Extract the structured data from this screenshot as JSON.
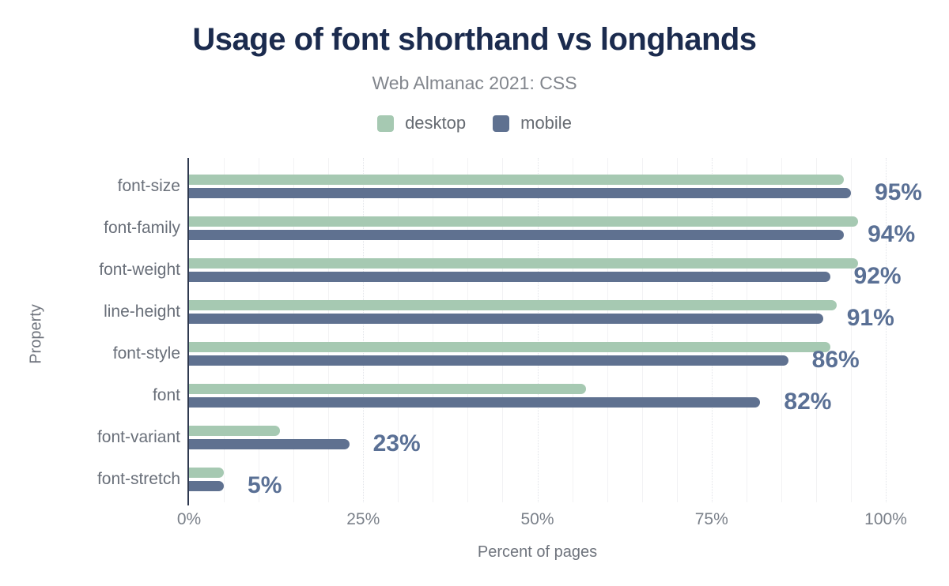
{
  "title": "Usage of font shorthand vs longhands",
  "subtitle": "Web Almanac 2021: CSS",
  "legend": {
    "items": [
      {
        "label": "desktop",
        "color": "#a6c9b2"
      },
      {
        "label": "mobile",
        "color": "#5f7190"
      }
    ]
  },
  "colors": {
    "title": "#1b2b4e",
    "subtitle": "#82868d",
    "legend_label": "#666b72",
    "category_label": "#696f79",
    "tick_label": "#7b818a",
    "axis_title": "#6f747d",
    "value_label": "#5a7095",
    "axis_line": "#2f3950",
    "grid_minor": "#f2f2f4",
    "grid_major": "#e2e4e9",
    "background": "#ffffff"
  },
  "chart_data": {
    "type": "bar",
    "orientation": "horizontal",
    "title": "Usage of font shorthand vs longhands",
    "subtitle": "Web Almanac 2021: CSS",
    "xlabel": "Percent of pages",
    "ylabel": "Property",
    "xlim": [
      0,
      100
    ],
    "grid": {
      "minor_step_pct": 5,
      "major_step_pct": 25,
      "minor_on": true,
      "major_on": true
    },
    "legend_position": "top",
    "x_ticks": [
      {
        "value": 0,
        "label": "0%"
      },
      {
        "value": 25,
        "label": "25%"
      },
      {
        "value": 50,
        "label": "50%"
      },
      {
        "value": 75,
        "label": "75%"
      },
      {
        "value": 100,
        "label": "100%"
      }
    ],
    "categories": [
      "font-size",
      "font-family",
      "font-weight",
      "line-height",
      "font-style",
      "font",
      "font-variant",
      "font-stretch"
    ],
    "series": [
      {
        "name": "desktop",
        "color": "#a6c9b2",
        "values": [
          94,
          96,
          96,
          93,
          92,
          57,
          13,
          5
        ]
      },
      {
        "name": "mobile",
        "color": "#5f7190",
        "values": [
          95,
          94,
          92,
          91,
          86,
          82,
          23,
          5
        ]
      }
    ],
    "value_labels": {
      "series": "mobile",
      "labels": [
        "95%",
        "94%",
        "92%",
        "91%",
        "86%",
        "82%",
        "23%",
        "5%"
      ]
    }
  }
}
